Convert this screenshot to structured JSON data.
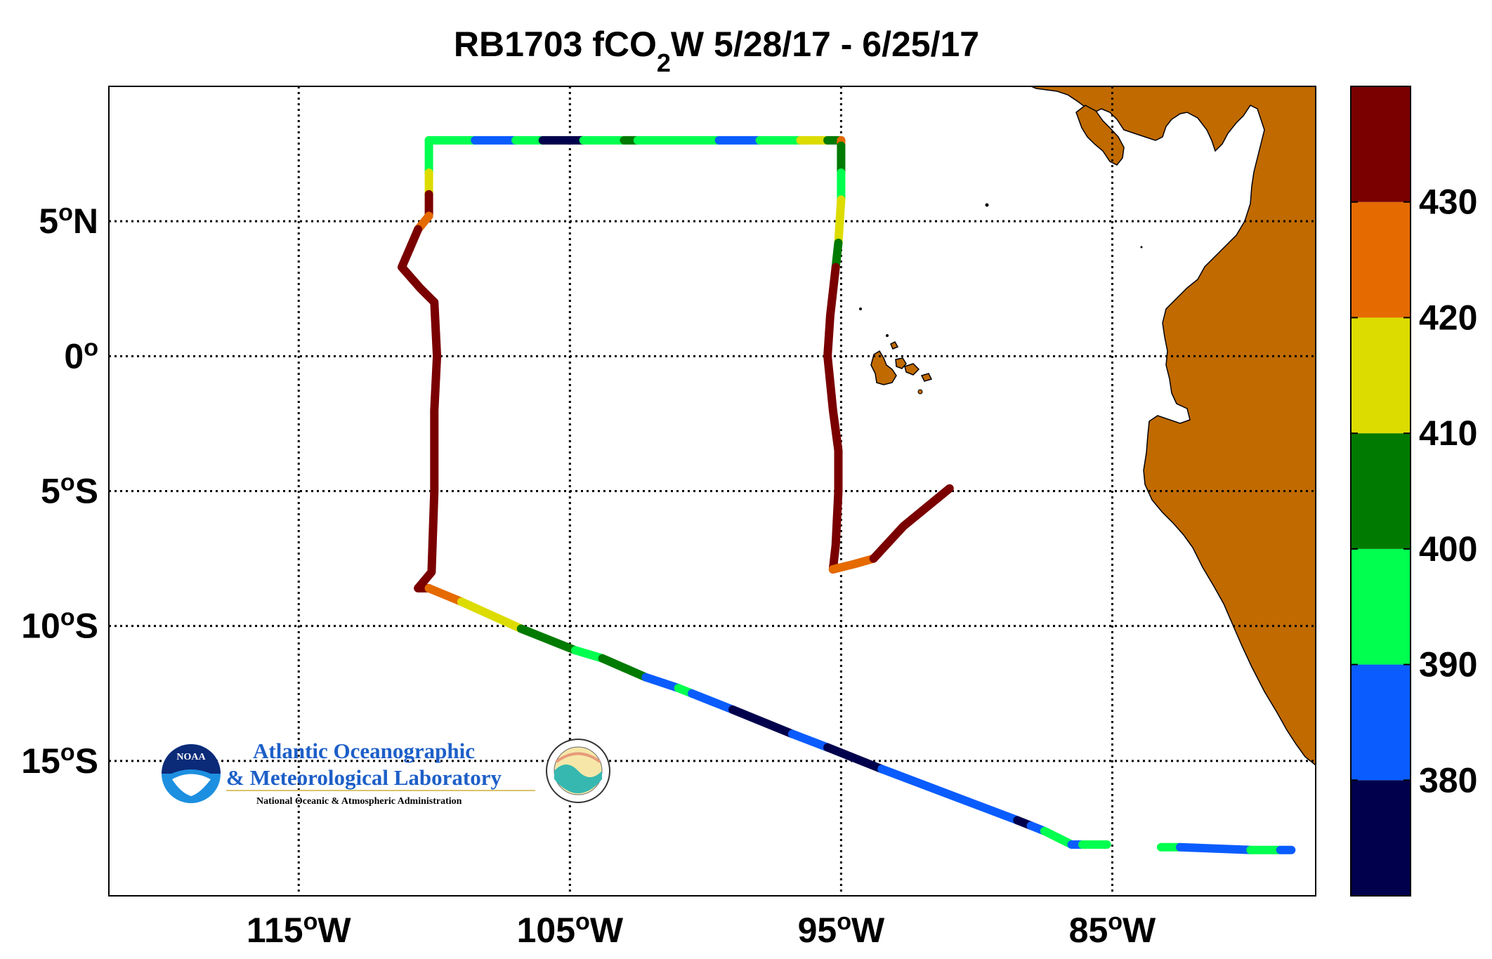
{
  "chart_data": {
    "type": "scatter",
    "title": {
      "main": "RB1703 fCO",
      "sub": "2",
      "rest": "W 5/28/17 - 6/25/17"
    },
    "x_axis": {
      "range": [
        -122,
        -77.5
      ],
      "ticks": [
        {
          "value": -115,
          "num": "115",
          "hem": "W"
        },
        {
          "value": -105,
          "num": "105",
          "hem": "W"
        },
        {
          "value": -95,
          "num": "95",
          "hem": "W"
        },
        {
          "value": -85,
          "num": "85",
          "hem": "W"
        }
      ]
    },
    "y_axis": {
      "range": [
        -20,
        10
      ],
      "ticks": [
        {
          "value": 5,
          "num": "5",
          "hem": "N"
        },
        {
          "value": 0,
          "num": "0",
          "hem": ""
        },
        {
          "value": -5,
          "num": "5",
          "hem": "S"
        },
        {
          "value": -10,
          "num": "10",
          "hem": "S"
        },
        {
          "value": -15,
          "num": "15",
          "hem": "S"
        }
      ]
    },
    "degree_symbol": "o",
    "grid": "dotted",
    "land_color": "#C06A00",
    "colorbar": {
      "range": [
        370,
        440
      ],
      "labels": [
        "430",
        "420",
        "410",
        "400",
        "390",
        "380"
      ],
      "label_values": [
        430,
        420,
        410,
        400,
        390,
        380
      ],
      "bins": [
        {
          "from": 370,
          "to": 380,
          "color": "#00004C"
        },
        {
          "from": 380,
          "to": 390,
          "color": "#0A5CFF"
        },
        {
          "from": 390,
          "to": 400,
          "color": "#00FF4F"
        },
        {
          "from": 400,
          "to": 410,
          "color": "#007A00"
        },
        {
          "from": 410,
          "to": 420,
          "color": "#DCDC00"
        },
        {
          "from": 420,
          "to": 430,
          "color": "#E56A00"
        },
        {
          "from": 430,
          "to": 440,
          "color": "#7A0000"
        }
      ]
    },
    "segments": [
      {
        "fco2": 395,
        "points": [
          [
            -110.2,
            8.0
          ],
          [
            -108.5,
            8.0
          ]
        ]
      },
      {
        "fco2": 385,
        "points": [
          [
            -108.5,
            8.0
          ],
          [
            -107.0,
            8.0
          ]
        ]
      },
      {
        "fco2": 395,
        "points": [
          [
            -107.0,
            8.0
          ],
          [
            -106.0,
            8.0
          ]
        ]
      },
      {
        "fco2": 375,
        "points": [
          [
            -106.0,
            8.0
          ],
          [
            -104.5,
            8.0
          ]
        ]
      },
      {
        "fco2": 395,
        "points": [
          [
            -104.5,
            8.0
          ],
          [
            -103.0,
            8.0
          ]
        ]
      },
      {
        "fco2": 405,
        "points": [
          [
            -103.0,
            8.0
          ],
          [
            -102.5,
            8.0
          ]
        ]
      },
      {
        "fco2": 395,
        "points": [
          [
            -102.5,
            8.0
          ],
          [
            -99.5,
            8.0
          ]
        ]
      },
      {
        "fco2": 385,
        "points": [
          [
            -99.5,
            8.0
          ],
          [
            -98.0,
            8.0
          ]
        ]
      },
      {
        "fco2": 395,
        "points": [
          [
            -98.0,
            8.0
          ],
          [
            -96.5,
            8.0
          ]
        ]
      },
      {
        "fco2": 415,
        "points": [
          [
            -96.5,
            8.0
          ],
          [
            -95.5,
            8.0
          ]
        ]
      },
      {
        "fco2": 405,
        "points": [
          [
            -95.5,
            8.0
          ],
          [
            -95.0,
            8.0
          ]
        ]
      },
      {
        "fco2": 425,
        "points": [
          [
            -95.0,
            8.0
          ],
          [
            -95.0,
            7.8
          ]
        ]
      },
      {
        "fco2": 405,
        "points": [
          [
            -95.0,
            7.8
          ],
          [
            -95.0,
            6.8
          ]
        ]
      },
      {
        "fco2": 395,
        "points": [
          [
            -95.0,
            6.8
          ],
          [
            -95.0,
            5.8
          ]
        ]
      },
      {
        "fco2": 415,
        "points": [
          [
            -95.0,
            5.8
          ],
          [
            -95.1,
            4.2
          ]
        ]
      },
      {
        "fco2": 405,
        "points": [
          [
            -95.1,
            4.2
          ],
          [
            -95.2,
            3.3
          ]
        ]
      },
      {
        "fco2": 435,
        "points": [
          [
            -95.2,
            3.3
          ],
          [
            -95.4,
            1.5
          ],
          [
            -95.5,
            0.0
          ],
          [
            -95.3,
            -2.0
          ],
          [
            -95.1,
            -3.5
          ],
          [
            -95.1,
            -5.0
          ],
          [
            -95.2,
            -7.0
          ],
          [
            -95.3,
            -7.9
          ]
        ]
      },
      {
        "fco2": 425,
        "points": [
          [
            -95.3,
            -7.9
          ],
          [
            -94.5,
            -7.7
          ],
          [
            -93.8,
            -7.5
          ]
        ]
      },
      {
        "fco2": 435,
        "points": [
          [
            -93.8,
            -7.5
          ],
          [
            -92.7,
            -6.3
          ],
          [
            -91.0,
            -4.9
          ]
        ]
      },
      {
        "fco2": 395,
        "points": [
          [
            -110.2,
            8.0
          ],
          [
            -110.2,
            6.8
          ]
        ]
      },
      {
        "fco2": 415,
        "points": [
          [
            -110.2,
            6.8
          ],
          [
            -110.2,
            6.0
          ]
        ]
      },
      {
        "fco2": 435,
        "points": [
          [
            -110.2,
            6.0
          ],
          [
            -110.2,
            5.2
          ]
        ]
      },
      {
        "fco2": 425,
        "points": [
          [
            -110.2,
            5.2
          ],
          [
            -110.6,
            4.7
          ]
        ]
      },
      {
        "fco2": 435,
        "points": [
          [
            -110.6,
            4.7
          ],
          [
            -111.2,
            3.3
          ],
          [
            -110.5,
            2.5
          ],
          [
            -110.0,
            2.0
          ],
          [
            -109.9,
            0.0
          ],
          [
            -110.0,
            -2.0
          ],
          [
            -110.0,
            -5.0
          ],
          [
            -110.1,
            -8.0
          ],
          [
            -110.6,
            -8.6
          ],
          [
            -110.2,
            -8.6
          ]
        ]
      },
      {
        "fco2": 425,
        "points": [
          [
            -110.2,
            -8.6
          ],
          [
            -109.0,
            -9.1
          ]
        ]
      },
      {
        "fco2": 415,
        "points": [
          [
            -109.0,
            -9.1
          ],
          [
            -106.8,
            -10.1
          ]
        ]
      },
      {
        "fco2": 405,
        "points": [
          [
            -106.8,
            -10.1
          ],
          [
            -104.8,
            -10.9
          ]
        ]
      },
      {
        "fco2": 395,
        "points": [
          [
            -104.8,
            -10.9
          ],
          [
            -103.8,
            -11.2
          ]
        ]
      },
      {
        "fco2": 405,
        "points": [
          [
            -103.8,
            -11.2
          ],
          [
            -102.2,
            -11.9
          ]
        ]
      },
      {
        "fco2": 385,
        "points": [
          [
            -102.2,
            -11.9
          ],
          [
            -101.0,
            -12.3
          ]
        ]
      },
      {
        "fco2": 395,
        "points": [
          [
            -101.0,
            -12.3
          ],
          [
            -100.5,
            -12.5
          ]
        ]
      },
      {
        "fco2": 385,
        "points": [
          [
            -100.5,
            -12.5
          ],
          [
            -99.0,
            -13.1
          ]
        ]
      },
      {
        "fco2": 375,
        "points": [
          [
            -99.0,
            -13.1
          ],
          [
            -96.8,
            -14.0
          ]
        ]
      },
      {
        "fco2": 385,
        "points": [
          [
            -96.8,
            -14.0
          ],
          [
            -95.5,
            -14.5
          ]
        ]
      },
      {
        "fco2": 375,
        "points": [
          [
            -95.5,
            -14.5
          ],
          [
            -93.5,
            -15.3
          ]
        ]
      },
      {
        "fco2": 385,
        "points": [
          [
            -93.5,
            -15.3
          ],
          [
            -88.5,
            -17.2
          ]
        ]
      },
      {
        "fco2": 375,
        "points": [
          [
            -88.5,
            -17.2
          ],
          [
            -88.0,
            -17.4
          ]
        ]
      },
      {
        "fco2": 385,
        "points": [
          [
            -88.0,
            -17.4
          ],
          [
            -87.5,
            -17.6
          ]
        ]
      },
      {
        "fco2": 395,
        "points": [
          [
            -87.5,
            -17.6
          ],
          [
            -86.5,
            -18.1
          ]
        ]
      },
      {
        "fco2": 385,
        "points": [
          [
            -86.5,
            -18.1
          ],
          [
            -86.1,
            -18.1
          ]
        ]
      },
      {
        "fco2": 395,
        "points": [
          [
            -86.1,
            -18.1
          ],
          [
            -85.2,
            -18.1
          ]
        ]
      },
      {
        "fco2": 395,
        "points": [
          [
            -83.2,
            -18.2
          ],
          [
            -82.5,
            -18.2
          ]
        ]
      },
      {
        "fco2": 385,
        "points": [
          [
            -82.5,
            -18.2
          ],
          [
            -79.9,
            -18.3
          ]
        ]
      },
      {
        "fco2": 395,
        "points": [
          [
            -79.9,
            -18.3
          ],
          [
            -78.8,
            -18.3
          ]
        ]
      },
      {
        "fco2": 385,
        "points": [
          [
            -78.8,
            -18.3
          ],
          [
            -78.4,
            -18.3
          ]
        ]
      }
    ]
  },
  "logo": {
    "line1": "Atlantic Oceanographic",
    "line2": "& Meteorological Laboratory",
    "line3": "National Oceanic & Atmospheric Administration",
    "badge": "NOAA"
  }
}
